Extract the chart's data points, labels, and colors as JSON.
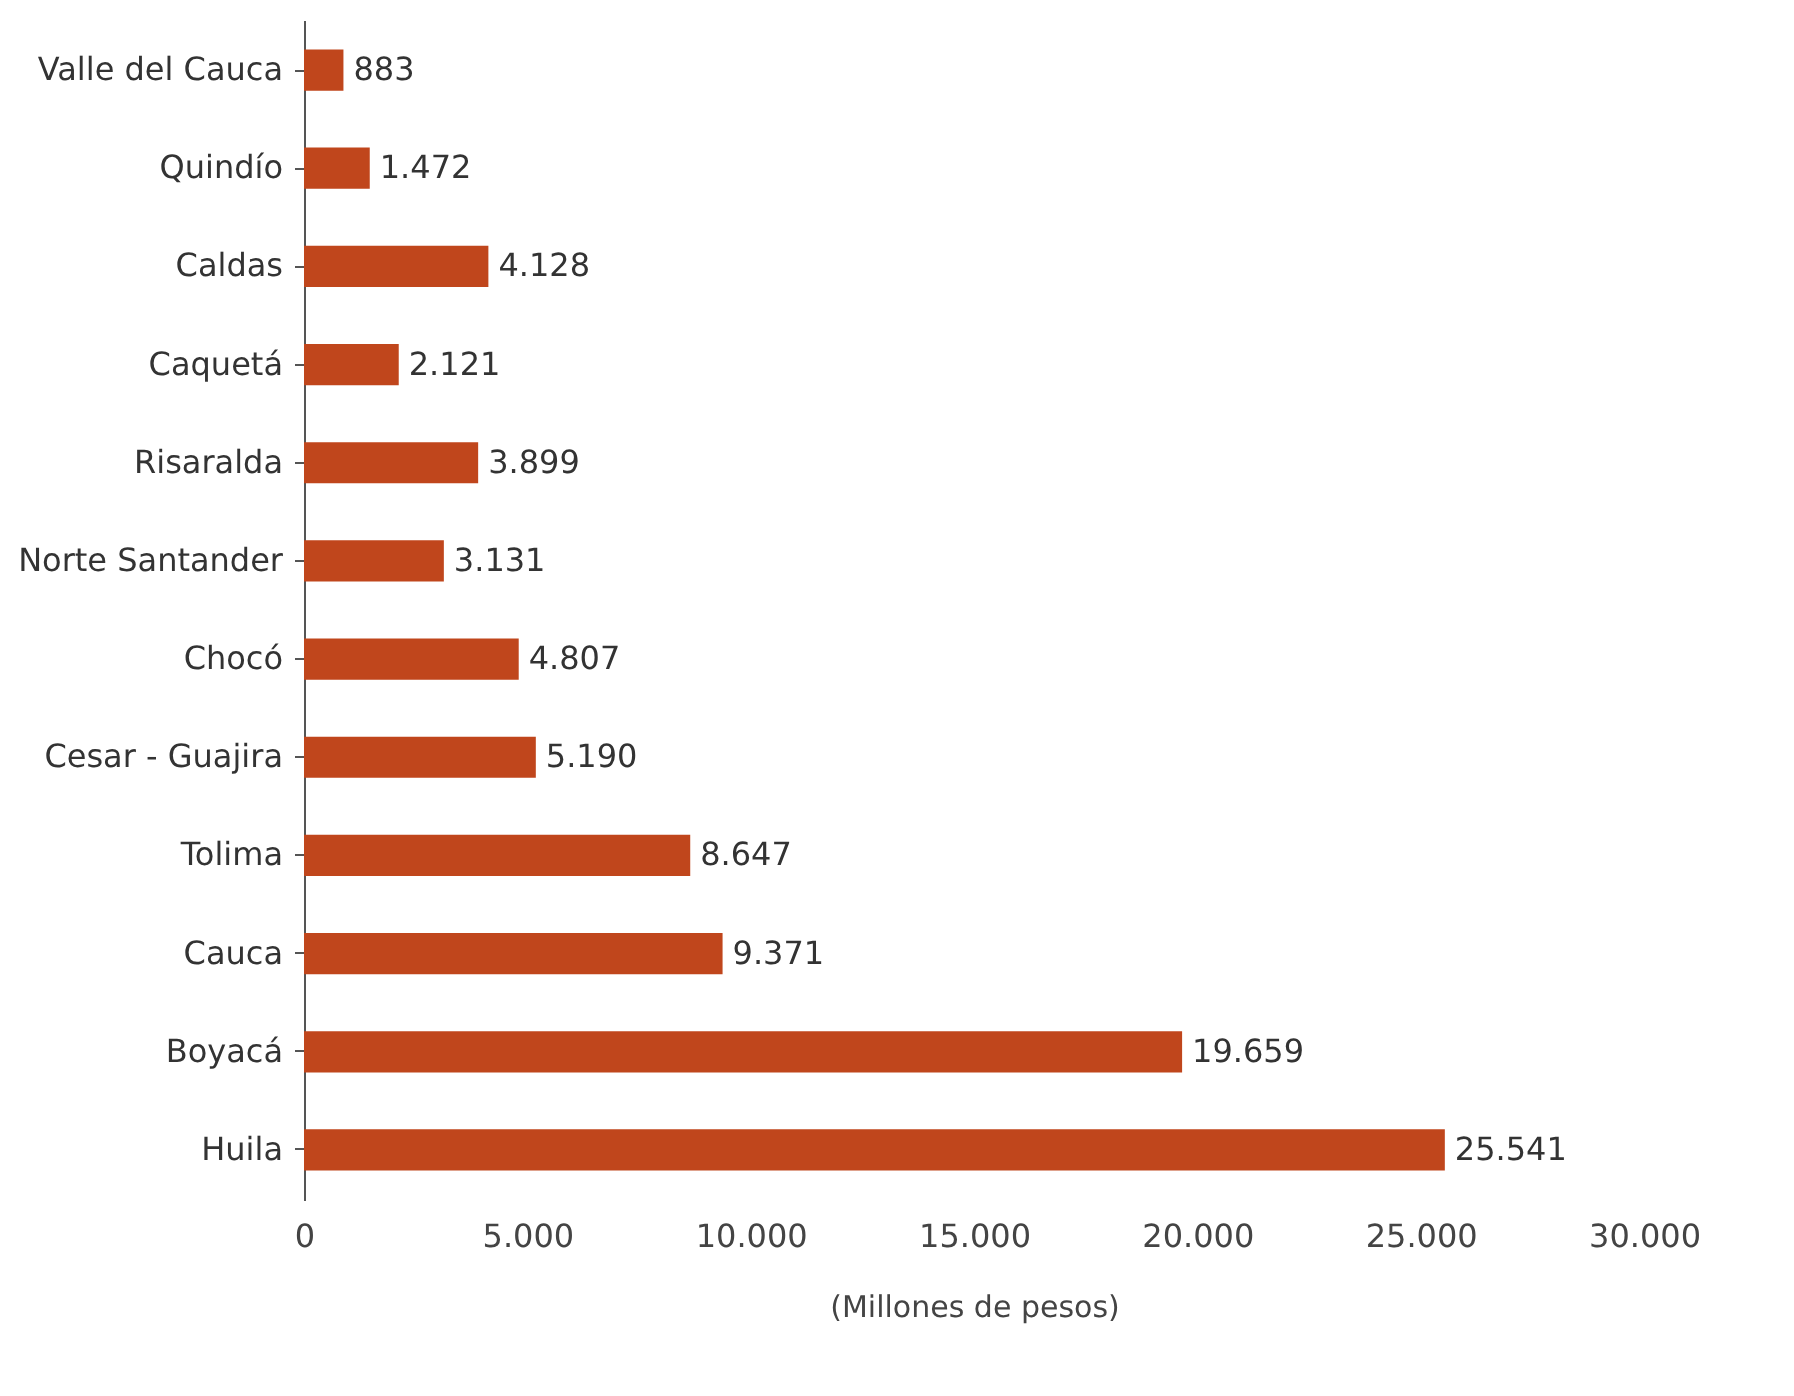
{
  "chart_data": {
    "type": "bar",
    "orientation": "horizontal",
    "xlabel": "(Millones de pesos)",
    "categories": [
      "Valle del Cauca",
      "Quindío",
      "Caldas",
      "Caquetá",
      "Risaralda",
      "Norte Santander",
      "Chocó",
      "Cesar - Guajira",
      "Tolima",
      "Cauca",
      "Boyacá",
      "Huila"
    ],
    "values": [
      883,
      1472,
      4128,
      2121,
      3899,
      3131,
      4807,
      5190,
      8647,
      9371,
      19659,
      25541
    ],
    "value_labels": [
      "883",
      "1.472",
      "4.128",
      "2.121",
      "3.899",
      "3.131",
      "4.807",
      "5.190",
      "8.647",
      "9.371",
      "19.659",
      "25.541"
    ],
    "color": "#c0461c",
    "xlim": [
      0,
      30000
    ],
    "xticks": [
      0,
      {
        "value": 5000,
        "label": "5.000"
      },
      {
        "value": 10000,
        "label": "10.000"
      },
      {
        "value": 15000,
        "label": "15.000"
      },
      {
        "value": 20000,
        "label": "20.000"
      },
      {
        "value": 25000,
        "label": "25.000"
      },
      {
        "value": 30000,
        "label": "30.000"
      }
    ],
    "grid": false
  }
}
